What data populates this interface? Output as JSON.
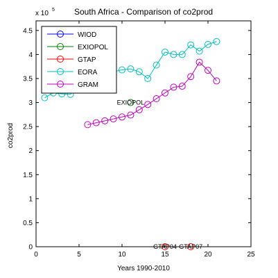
{
  "chart_data": {
    "type": "line",
    "title": "South Africa - Comparison of co2prod",
    "xlabel": "Years 1990-2010",
    "ylabel": "co2prod",
    "exponent_label": "x 10",
    "exponent_power": "5",
    "xlim": [
      0,
      25
    ],
    "ylim": [
      0,
      470000
    ],
    "xticks": [
      0,
      5,
      10,
      15,
      20,
      25
    ],
    "yticks": [
      0,
      50000,
      100000,
      150000,
      200000,
      250000,
      300000,
      350000,
      400000,
      450000
    ],
    "ytick_labels": [
      "0",
      "0.5",
      "1",
      "1.5",
      "2",
      "2.5",
      "3",
      "3.5",
      "4",
      "4.5"
    ],
    "grid": false,
    "legend_position": "top-left",
    "series": [
      {
        "name": "WIOD",
        "color": "#0000ff",
        "x": [],
        "y": []
      },
      {
        "name": "EXIOPOL",
        "color": "#008000",
        "x": [
          11
        ],
        "y": [
          300000
        ]
      },
      {
        "name": "GTAP",
        "color": "#ff0000",
        "x": [
          15,
          18
        ],
        "y": [
          0,
          0
        ]
      },
      {
        "name": "EORA",
        "color": "#00bfbf",
        "x": [
          1,
          2,
          3,
          4,
          5,
          6,
          7,
          8,
          9,
          10,
          11,
          12,
          13,
          14,
          15,
          16,
          17,
          18,
          19,
          20,
          21
        ],
        "y": [
          310000,
          320000,
          318000,
          317000,
          336000,
          348000,
          353000,
          357000,
          364000,
          368000,
          370000,
          364000,
          350000,
          378000,
          405000,
          400000,
          400000,
          420000,
          407000,
          421000,
          427000
        ]
      },
      {
        "name": "GRAM",
        "color": "#bf00bf",
        "x": [
          6,
          7,
          8,
          9,
          10,
          11,
          12,
          13,
          14,
          15,
          16,
          17,
          18,
          19,
          20,
          21
        ],
        "y": [
          254000,
          258000,
          262000,
          266000,
          270000,
          274000,
          285000,
          296000,
          308000,
          320000,
          332000,
          334000,
          354000,
          384000,
          367000,
          345000
        ]
      }
    ],
    "annotations": [
      {
        "text": "EXIOPOL",
        "x": 11,
        "y": 300000
      },
      {
        "text": "GTAP04",
        "x": 15,
        "y": 0
      },
      {
        "text": "GTAP07",
        "x": 18,
        "y": 0
      }
    ]
  }
}
